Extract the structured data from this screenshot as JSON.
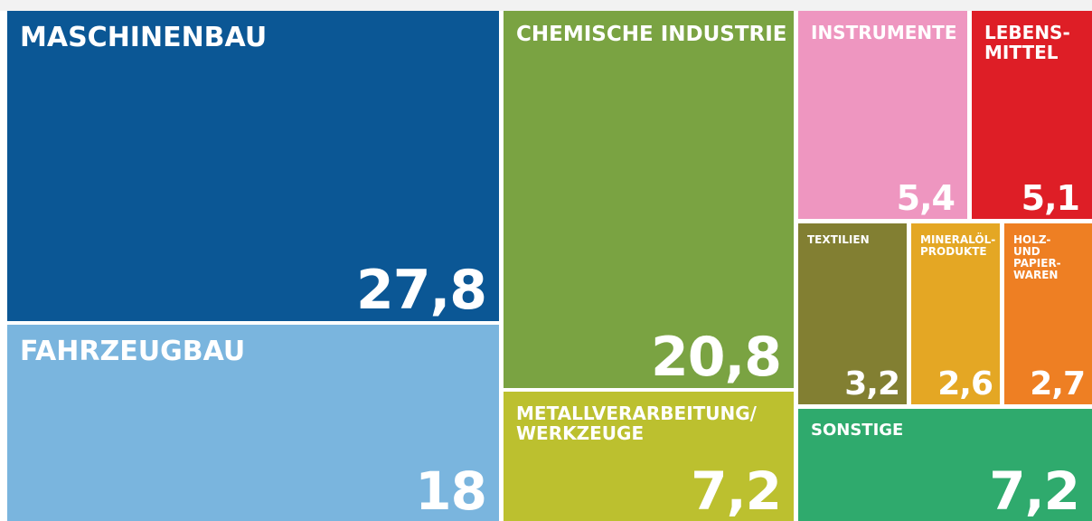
{
  "chart_data": {
    "type": "treemap",
    "categories": [
      "MASCHINENBAU",
      "FAHRZEUGBAU",
      "CHEMISCHE INDUSTRIE",
      "METALLVERARBEITUNG/\nWERKZEUGE",
      "INSTRUMENTE",
      "LEBENS-\nMITTEL",
      "TEXTILIEN",
      "MINERALÖL-\nPRODUKTE",
      "HOLZ-\nUND\nPAPIER-\nWAREN",
      "SONSTIGE"
    ],
    "values": [
      27.8,
      18,
      20.8,
      7.2,
      5.4,
      5.1,
      3.2,
      2.6,
      2.7,
      7.2
    ],
    "value_labels": [
      "27,8",
      "18",
      "20,8",
      "7,2",
      "5,4",
      "5,1",
      "3,2",
      "2,6",
      "2,7",
      "7,2"
    ],
    "colors": [
      "#0b5795",
      "#7ab5de",
      "#7aa342",
      "#bcc02f",
      "#ee96c0",
      "#de1e26",
      "#827f32",
      "#e4a724",
      "#ee7f23",
      "#2faa6d"
    ]
  }
}
